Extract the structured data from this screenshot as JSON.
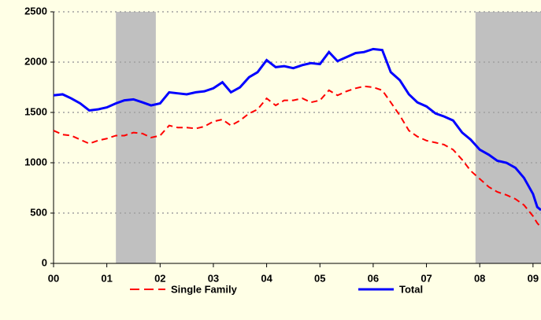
{
  "chart_data": {
    "type": "line",
    "x": [
      2000,
      2000.17,
      2000.33,
      2000.5,
      2000.67,
      2000.83,
      2001,
      2001.17,
      2001.33,
      2001.5,
      2001.67,
      2001.83,
      2002,
      2002.17,
      2002.33,
      2002.5,
      2002.67,
      2002.83,
      2003,
      2003.17,
      2003.33,
      2003.5,
      2003.67,
      2003.83,
      2004,
      2004.17,
      2004.33,
      2004.5,
      2004.67,
      2004.83,
      2005,
      2005.17,
      2005.33,
      2005.5,
      2005.67,
      2005.83,
      2006,
      2006.17,
      2006.33,
      2006.5,
      2006.67,
      2006.83,
      2007,
      2007.17,
      2007.33,
      2007.5,
      2007.67,
      2007.83,
      2008,
      2008.17,
      2008.33,
      2008.5,
      2008.67,
      2008.83,
      2009,
      2009.08,
      2009.15
    ],
    "series": [
      {
        "name": "Single Family",
        "color": "#ff0000",
        "dash": true,
        "values": [
          1320,
          1280,
          1270,
          1230,
          1190,
          1220,
          1240,
          1270,
          1270,
          1300,
          1290,
          1250,
          1270,
          1370,
          1350,
          1350,
          1340,
          1360,
          1410,
          1430,
          1370,
          1420,
          1490,
          1530,
          1640,
          1570,
          1620,
          1620,
          1640,
          1600,
          1620,
          1720,
          1670,
          1710,
          1740,
          1760,
          1750,
          1720,
          1600,
          1470,
          1320,
          1260,
          1220,
          1200,
          1180,
          1130,
          1030,
          920,
          840,
          760,
          710,
          680,
          640,
          580,
          470,
          400,
          360
        ]
      },
      {
        "name": "Total",
        "color": "#0000ff",
        "dash": false,
        "values": [
          1670,
          1680,
          1640,
          1590,
          1520,
          1530,
          1550,
          1590,
          1620,
          1630,
          1600,
          1570,
          1590,
          1700,
          1690,
          1680,
          1700,
          1710,
          1740,
          1800,
          1700,
          1750,
          1850,
          1900,
          2020,
          1950,
          1960,
          1940,
          1970,
          1990,
          1980,
          2100,
          2010,
          2050,
          2090,
          2100,
          2130,
          2120,
          1900,
          1820,
          1680,
          1600,
          1560,
          1490,
          1460,
          1420,
          1300,
          1230,
          1130,
          1080,
          1020,
          1000,
          950,
          850,
          690,
          560,
          530
        ]
      }
    ],
    "shaded_regions": [
      [
        2001.17,
        2001.92
      ],
      [
        2007.92,
        2009.15
      ]
    ],
    "shade_color": "#c0c0c0",
    "xlim": [
      2000,
      2009.15
    ],
    "xticks": [
      {
        "value": 2000,
        "label": "00"
      },
      {
        "value": 2001,
        "label": "01"
      },
      {
        "value": 2002,
        "label": "02"
      },
      {
        "value": 2003,
        "label": "03"
      },
      {
        "value": 2004,
        "label": "04"
      },
      {
        "value": 2005,
        "label": "05"
      },
      {
        "value": 2006,
        "label": "06"
      },
      {
        "value": 2007,
        "label": "07"
      },
      {
        "value": 2008,
        "label": "08"
      },
      {
        "value": 2009,
        "label": "09"
      }
    ],
    "ylim": [
      0,
      2500
    ],
    "yticks": [
      0,
      500,
      1000,
      1500,
      2000,
      2500
    ],
    "grid": true
  }
}
